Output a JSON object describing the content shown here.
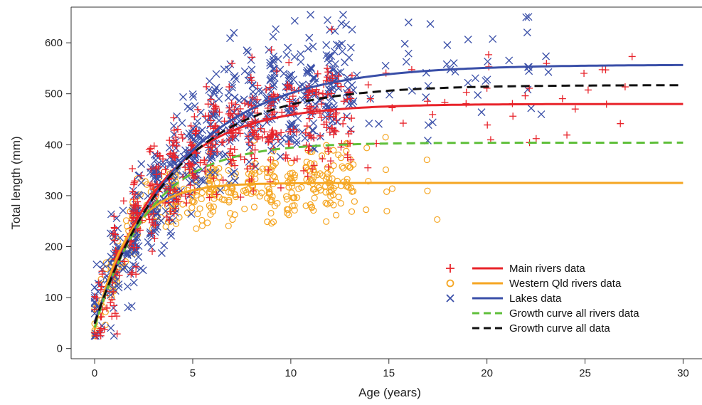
{
  "chart_data": {
    "type": "scatter",
    "xlabel": "Age (years)",
    "ylabel": "Total length (mm)",
    "xlim": [
      -1.2,
      31
    ],
    "ylim": [
      -20,
      670
    ],
    "x_ticks": [
      "0",
      "5",
      "10",
      "15",
      "20",
      "25",
      "30"
    ],
    "y_ticks": [
      "0",
      "100",
      "200",
      "300",
      "400",
      "500",
      "600"
    ],
    "grid": false,
    "legend_position": "bottom-right",
    "colors": {
      "main_rivers": "#e8232a",
      "western_qld": "#f5a623",
      "lakes": "#3a4fa8",
      "all_rivers_curve": "#5fbf3a",
      "all_data_curve": "#111111"
    },
    "legend": [
      {
        "label": "Main rivers data",
        "marker": "plus",
        "line": "solid",
        "color_key": "main_rivers"
      },
      {
        "label": "Western Qld rivers data",
        "marker": "circle",
        "line": "solid",
        "color_key": "western_qld"
      },
      {
        "label": "Lakes data",
        "marker": "cross",
        "line": "solid",
        "color_key": "lakes"
      },
      {
        "label": "Growth curve all rivers data",
        "marker": "none",
        "line": "dashed",
        "color_key": "all_rivers_curve"
      },
      {
        "label": "Growth curve all data",
        "marker": "none",
        "line": "dashed",
        "color_key": "all_data_curve"
      }
    ],
    "growth_curves": [
      {
        "key": "main_rivers",
        "linf": 480,
        "k": 0.3,
        "t0": -0.35,
        "dashed": false
      },
      {
        "key": "western_qld",
        "linf": 325,
        "k": 0.6,
        "t0": -0.2,
        "dashed": false
      },
      {
        "key": "lakes",
        "linf": 557,
        "k": 0.22,
        "t0": -0.45,
        "dashed": false
      },
      {
        "key": "all_rivers_curve",
        "linf": 404,
        "k": 0.36,
        "t0": -0.3,
        "dashed": true
      },
      {
        "key": "all_data_curve",
        "linf": 517,
        "k": 0.25,
        "t0": -0.4,
        "dashed": true
      }
    ],
    "series": [
      {
        "key": "main_rivers",
        "marker": "plus",
        "age_range": [
          0,
          27.5
        ],
        "count": 520
      },
      {
        "key": "western_qld",
        "marker": "circle",
        "age_range": [
          0,
          17.5
        ],
        "count": 420
      },
      {
        "key": "lakes",
        "marker": "cross",
        "age_range": [
          0,
          23.5
        ],
        "count": 650
      }
    ],
    "highlight_points": [
      {
        "key": "main_rivers",
        "x": 27.4,
        "y": 573
      },
      {
        "key": "lakes",
        "x": 22,
        "y": 650
      },
      {
        "key": "lakes",
        "x": 10.2,
        "y": 643
      },
      {
        "key": "lakes",
        "x": 16,
        "y": 640
      },
      {
        "key": "main_rivers",
        "x": 24.5,
        "y": 470
      },
      {
        "key": "lakes",
        "x": 0.1,
        "y": 165
      }
    ]
  }
}
